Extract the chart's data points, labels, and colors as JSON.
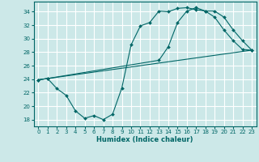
{
  "xlabel": "Humidex (Indice chaleur)",
  "bg_color": "#cce8e8",
  "grid_color": "#ffffff",
  "line_color": "#006666",
  "xlim": [
    -0.5,
    23.5
  ],
  "ylim": [
    17.0,
    35.5
  ],
  "xticks": [
    0,
    1,
    2,
    3,
    4,
    5,
    6,
    7,
    8,
    9,
    10,
    11,
    12,
    13,
    14,
    15,
    16,
    17,
    18,
    19,
    20,
    21,
    22,
    23
  ],
  "yticks": [
    18,
    20,
    22,
    24,
    26,
    28,
    30,
    32,
    34
  ],
  "line1_x": [
    0,
    1,
    2,
    3,
    4,
    5,
    6,
    7,
    8,
    9,
    10,
    11,
    12,
    13,
    14,
    15,
    16,
    17,
    18,
    19,
    20,
    21,
    22,
    23
  ],
  "line1_y": [
    23.9,
    24.1,
    22.6,
    21.6,
    19.3,
    18.2,
    18.6,
    18.0,
    18.8,
    22.7,
    29.1,
    31.9,
    32.4,
    34.1,
    34.0,
    34.5,
    34.6,
    34.3,
    34.1,
    33.2,
    31.3,
    29.7,
    28.4,
    28.3
  ],
  "line2_x": [
    0,
    1,
    13,
    14,
    15,
    16,
    17,
    18,
    19,
    20,
    21,
    22,
    23
  ],
  "line2_y": [
    23.9,
    24.1,
    26.8,
    28.8,
    32.4,
    34.1,
    34.6,
    34.1,
    34.1,
    33.2,
    31.3,
    29.7,
    28.3
  ],
  "line3_x": [
    0,
    23
  ],
  "line3_y": [
    23.9,
    28.3
  ]
}
